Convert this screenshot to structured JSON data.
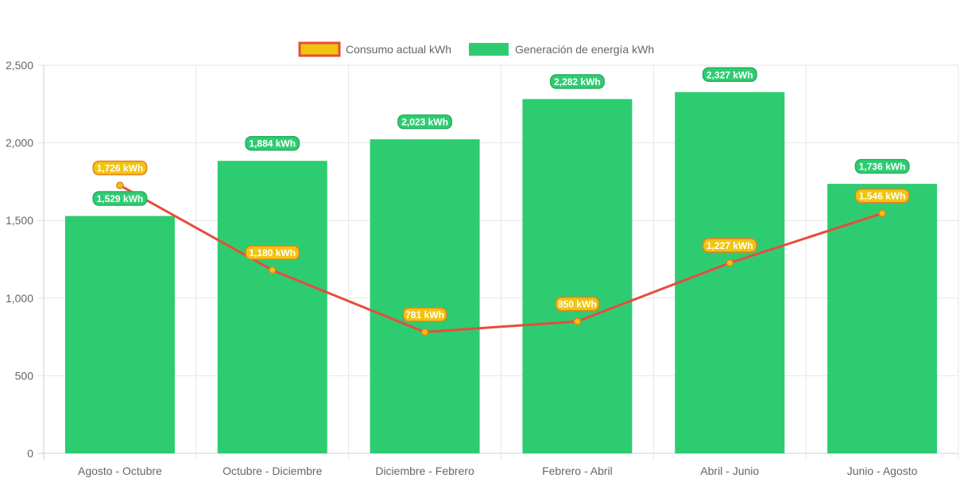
{
  "chart_data": {
    "type": "bar",
    "categories": [
      "Agosto - Octubre",
      "Octubre - Diciembre",
      "Diciembre - Febrero",
      "Febrero - Abril",
      "Abril - Junio",
      "Junio - Agosto"
    ],
    "series": [
      {
        "name": "Consumo actual kWh",
        "type": "line",
        "values": [
          1726,
          1180,
          781,
          850,
          1227,
          1546
        ],
        "labels": [
          "1,726 kWh",
          "1,180 kWh",
          "781 kWh",
          "850 kWh",
          "1,227 kWh",
          "1,546 kWh"
        ],
        "color": "#e74c3c",
        "fill": "#f1c40f"
      },
      {
        "name": "Generación de energía kWh",
        "type": "bar",
        "values": [
          1529,
          1884,
          2023,
          2282,
          2327,
          1736
        ],
        "labels": [
          "1,529 kWh",
          "1,884 kWh",
          "2,023 kWh",
          "2,282 kWh",
          "2,327 kWh",
          "1,736 kWh"
        ],
        "color": "#2ecc71"
      }
    ],
    "ylim": [
      0,
      2500
    ],
    "y_ticks": [
      0,
      500,
      1000,
      1500,
      2000,
      2500
    ],
    "y_tick_labels": [
      "0",
      "500",
      "1,000",
      "1,500",
      "2,000",
      "2,500"
    ],
    "grid": true,
    "legend_position": "top-center",
    "title": "",
    "xlabel": "",
    "ylabel": ""
  }
}
